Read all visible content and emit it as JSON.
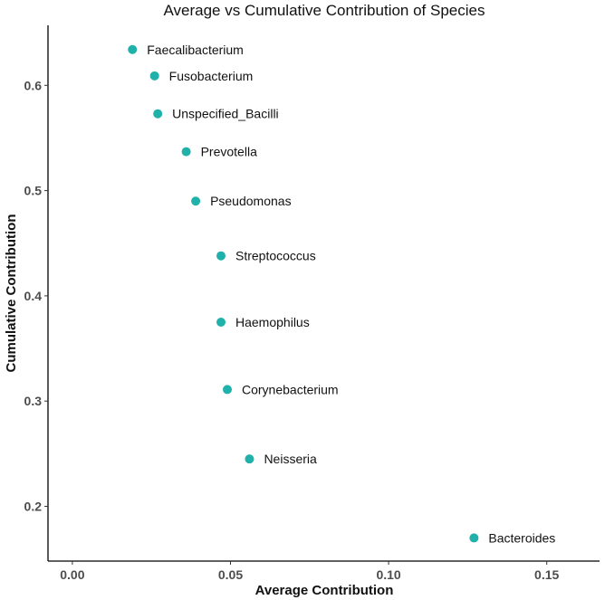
{
  "chart_data": {
    "type": "scatter",
    "title": "Average vs Cumulative Contribution of Species",
    "xlabel": "Average Contribution",
    "ylabel": "Cumulative Contribution",
    "xlim": [
      -0.0077,
      0.1667
    ],
    "ylim": [
      0.148,
      0.657
    ],
    "xticks": [
      0.0,
      0.05,
      0.1,
      0.15
    ],
    "xtick_labels": [
      "0.00",
      "0.05",
      "0.10",
      "0.15"
    ],
    "yticks": [
      0.2,
      0.3,
      0.4,
      0.5,
      0.6
    ],
    "ytick_labels": [
      "0.2",
      "0.3",
      "0.4",
      "0.5",
      "0.6"
    ],
    "grid": false,
    "point_color": "#20B2AA",
    "points": [
      {
        "label": "Faecalibacterium",
        "x": 0.019,
        "y": 0.634
      },
      {
        "label": "Fusobacterium",
        "x": 0.026,
        "y": 0.609
      },
      {
        "label": "Unspecified_Bacilli",
        "x": 0.027,
        "y": 0.573
      },
      {
        "label": "Prevotella",
        "x": 0.036,
        "y": 0.537
      },
      {
        "label": "Pseudomonas",
        "x": 0.039,
        "y": 0.49
      },
      {
        "label": "Streptococcus",
        "x": 0.047,
        "y": 0.438
      },
      {
        "label": "Haemophilus",
        "x": 0.047,
        "y": 0.375
      },
      {
        "label": "Corynebacterium",
        "x": 0.049,
        "y": 0.311
      },
      {
        "label": "Neisseria",
        "x": 0.056,
        "y": 0.245
      },
      {
        "label": "Bacteroides",
        "x": 0.127,
        "y": 0.17
      }
    ]
  }
}
